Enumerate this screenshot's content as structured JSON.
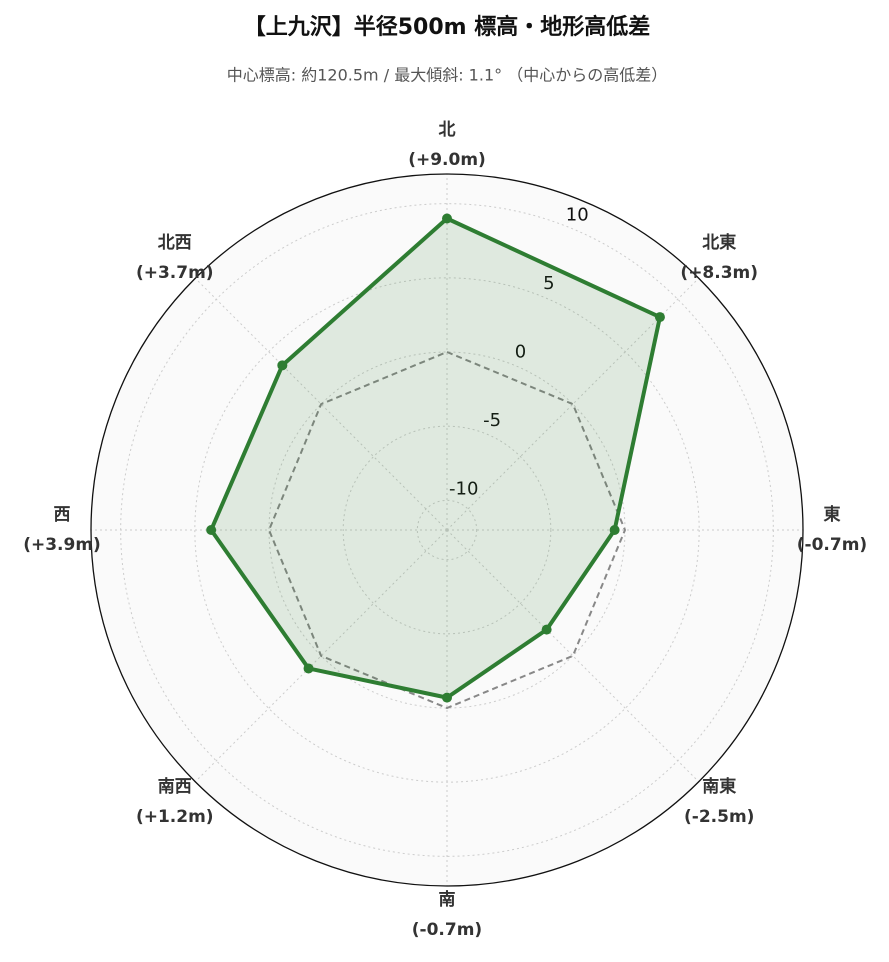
{
  "chart_data": {
    "type": "radar",
    "title": "【上九沢】半径500m 標高・地形高低差",
    "subtitle": "中心標高: 約120.5m / 最大傾斜: 1.1° （中心からの高低差）",
    "categories": [
      "北",
      "北東",
      "東",
      "南東",
      "南",
      "南西",
      "西",
      "北西"
    ],
    "series": [
      {
        "color": "#2e7d32",
        "values": [
          9.0,
          8.3,
          -0.7,
          -2.5,
          -0.7,
          1.2,
          3.9,
          3.7
        ],
        "value_labels": [
          "(+9.0m)",
          "(+8.3m)",
          "(-0.7m)",
          "(-2.5m)",
          "(-0.7m)",
          "(+1.2m)",
          "(+3.9m)",
          "(+3.7m)"
        ]
      }
    ],
    "baseline": 0,
    "rlim": [
      -12,
      12
    ],
    "rticks": [
      -10,
      -5,
      0,
      5,
      10
    ],
    "grid": true
  }
}
